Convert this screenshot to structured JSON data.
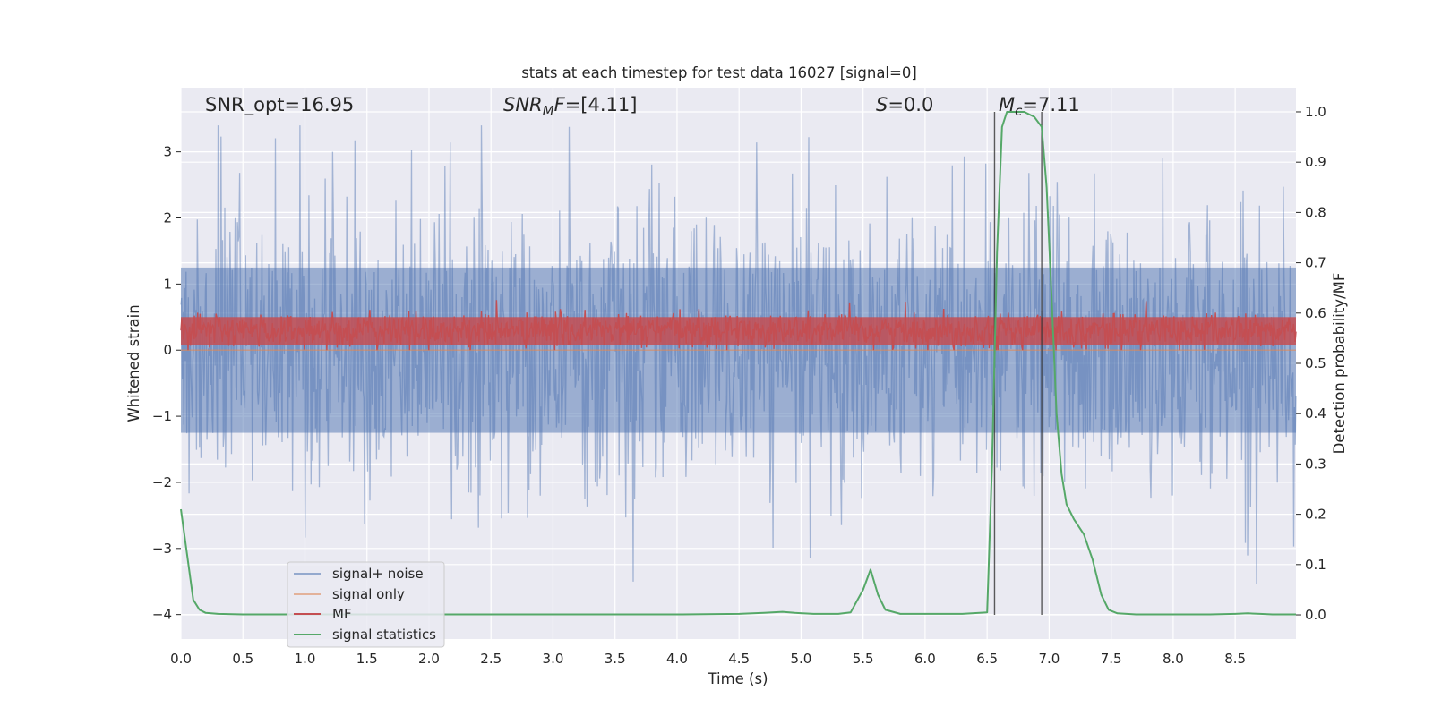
{
  "chart_data": {
    "type": "line",
    "title": "stats at each timestep for test data 16027 [signal=0]",
    "xlabel": "Time (s)",
    "ylabel_left": "Whitened strain",
    "ylabel_right": "Detection probability/MF",
    "xlim": [
      0,
      8.99
    ],
    "ylim_left": [
      -4.37,
      3.97
    ],
    "ylim_right": [
      -0.048,
      1.048
    ],
    "x_ticks": [
      "0.0",
      "0.5",
      "1.0",
      "1.5",
      "2.0",
      "2.5",
      "3.0",
      "3.5",
      "4.0",
      "4.5",
      "5.0",
      "5.5",
      "6.0",
      "6.5",
      "7.0",
      "7.5",
      "8.0",
      "8.5"
    ],
    "x_tick_values": [
      0,
      0.5,
      1,
      1.5,
      2,
      2.5,
      3,
      3.5,
      4,
      4.5,
      5,
      5.5,
      6,
      6.5,
      7,
      7.5,
      8,
      8.5
    ],
    "y_ticks_left": [
      "3",
      "2",
      "1",
      "0",
      "−1",
      "−2",
      "−3",
      "−4"
    ],
    "y_tick_values_left": [
      3,
      2,
      1,
      0,
      -1,
      -2,
      -3,
      -4
    ],
    "y_ticks_right": [
      "1.0",
      "0.9",
      "0.8",
      "0.7",
      "0.6",
      "0.5",
      "0.4",
      "0.3",
      "0.2",
      "0.1",
      "0.0"
    ],
    "y_tick_values_right": [
      1.0,
      0.9,
      0.8,
      0.7,
      0.6,
      0.5,
      0.4,
      0.3,
      0.2,
      0.1,
      0.0
    ],
    "grid": true,
    "legend_position": "lower-left",
    "annotations": {
      "snr_opt": "SNR_opt=16.95",
      "snr_mf_main": "SNR",
      "snr_mf_sub": "M",
      "snr_mf_rest": "F=[4.11]",
      "s_main": "S",
      "s_rest": "=0.0",
      "mc_main": "M",
      "mc_sub": "c",
      "mc_rest": "=7.11"
    },
    "vlines_x": [
      6.56,
      6.94
    ],
    "series": [
      {
        "name": "signal+ noise",
        "color": "#4c72b0",
        "axis": "left",
        "description_range": [
          -3.8,
          3.4
        ]
      },
      {
        "name": "signal only",
        "color": "#dd8452",
        "axis": "left",
        "y": 0
      },
      {
        "name": "MF",
        "color": "#c44e52",
        "axis": "left",
        "description_range": [
          0,
          0.85
        ]
      },
      {
        "name": "signal statistics",
        "color": "#55a868",
        "axis": "right",
        "x": [
          0.0,
          0.05,
          0.1,
          0.15,
          0.2,
          0.3,
          0.5,
          1.0,
          1.5,
          2.0,
          2.5,
          3.0,
          3.5,
          4.0,
          4.5,
          4.7,
          4.85,
          4.95,
          5.1,
          5.3,
          5.4,
          5.5,
          5.56,
          5.62,
          5.68,
          5.8,
          6.0,
          6.3,
          6.5,
          6.54,
          6.58,
          6.62,
          6.66,
          6.7,
          6.8,
          6.88,
          6.94,
          6.98,
          7.02,
          7.06,
          7.1,
          7.14,
          7.2,
          7.28,
          7.35,
          7.42,
          7.48,
          7.55,
          7.7,
          8.0,
          8.3,
          8.5,
          8.6,
          8.7,
          8.8,
          8.99
        ],
        "values": [
          0.21,
          0.12,
          0.03,
          0.01,
          0.004,
          0.002,
          0.001,
          0.001,
          0.001,
          0.001,
          0.001,
          0.001,
          0.001,
          0.001,
          0.002,
          0.004,
          0.006,
          0.004,
          0.002,
          0.002,
          0.005,
          0.05,
          0.09,
          0.04,
          0.01,
          0.002,
          0.002,
          0.002,
          0.005,
          0.3,
          0.72,
          0.97,
          1.0,
          1.0,
          1.0,
          0.99,
          0.97,
          0.85,
          0.63,
          0.4,
          0.28,
          0.22,
          0.19,
          0.16,
          0.11,
          0.04,
          0.01,
          0.003,
          0.001,
          0.001,
          0.001,
          0.002,
          0.003,
          0.002,
          0.001,
          0.001
        ]
      }
    ]
  }
}
